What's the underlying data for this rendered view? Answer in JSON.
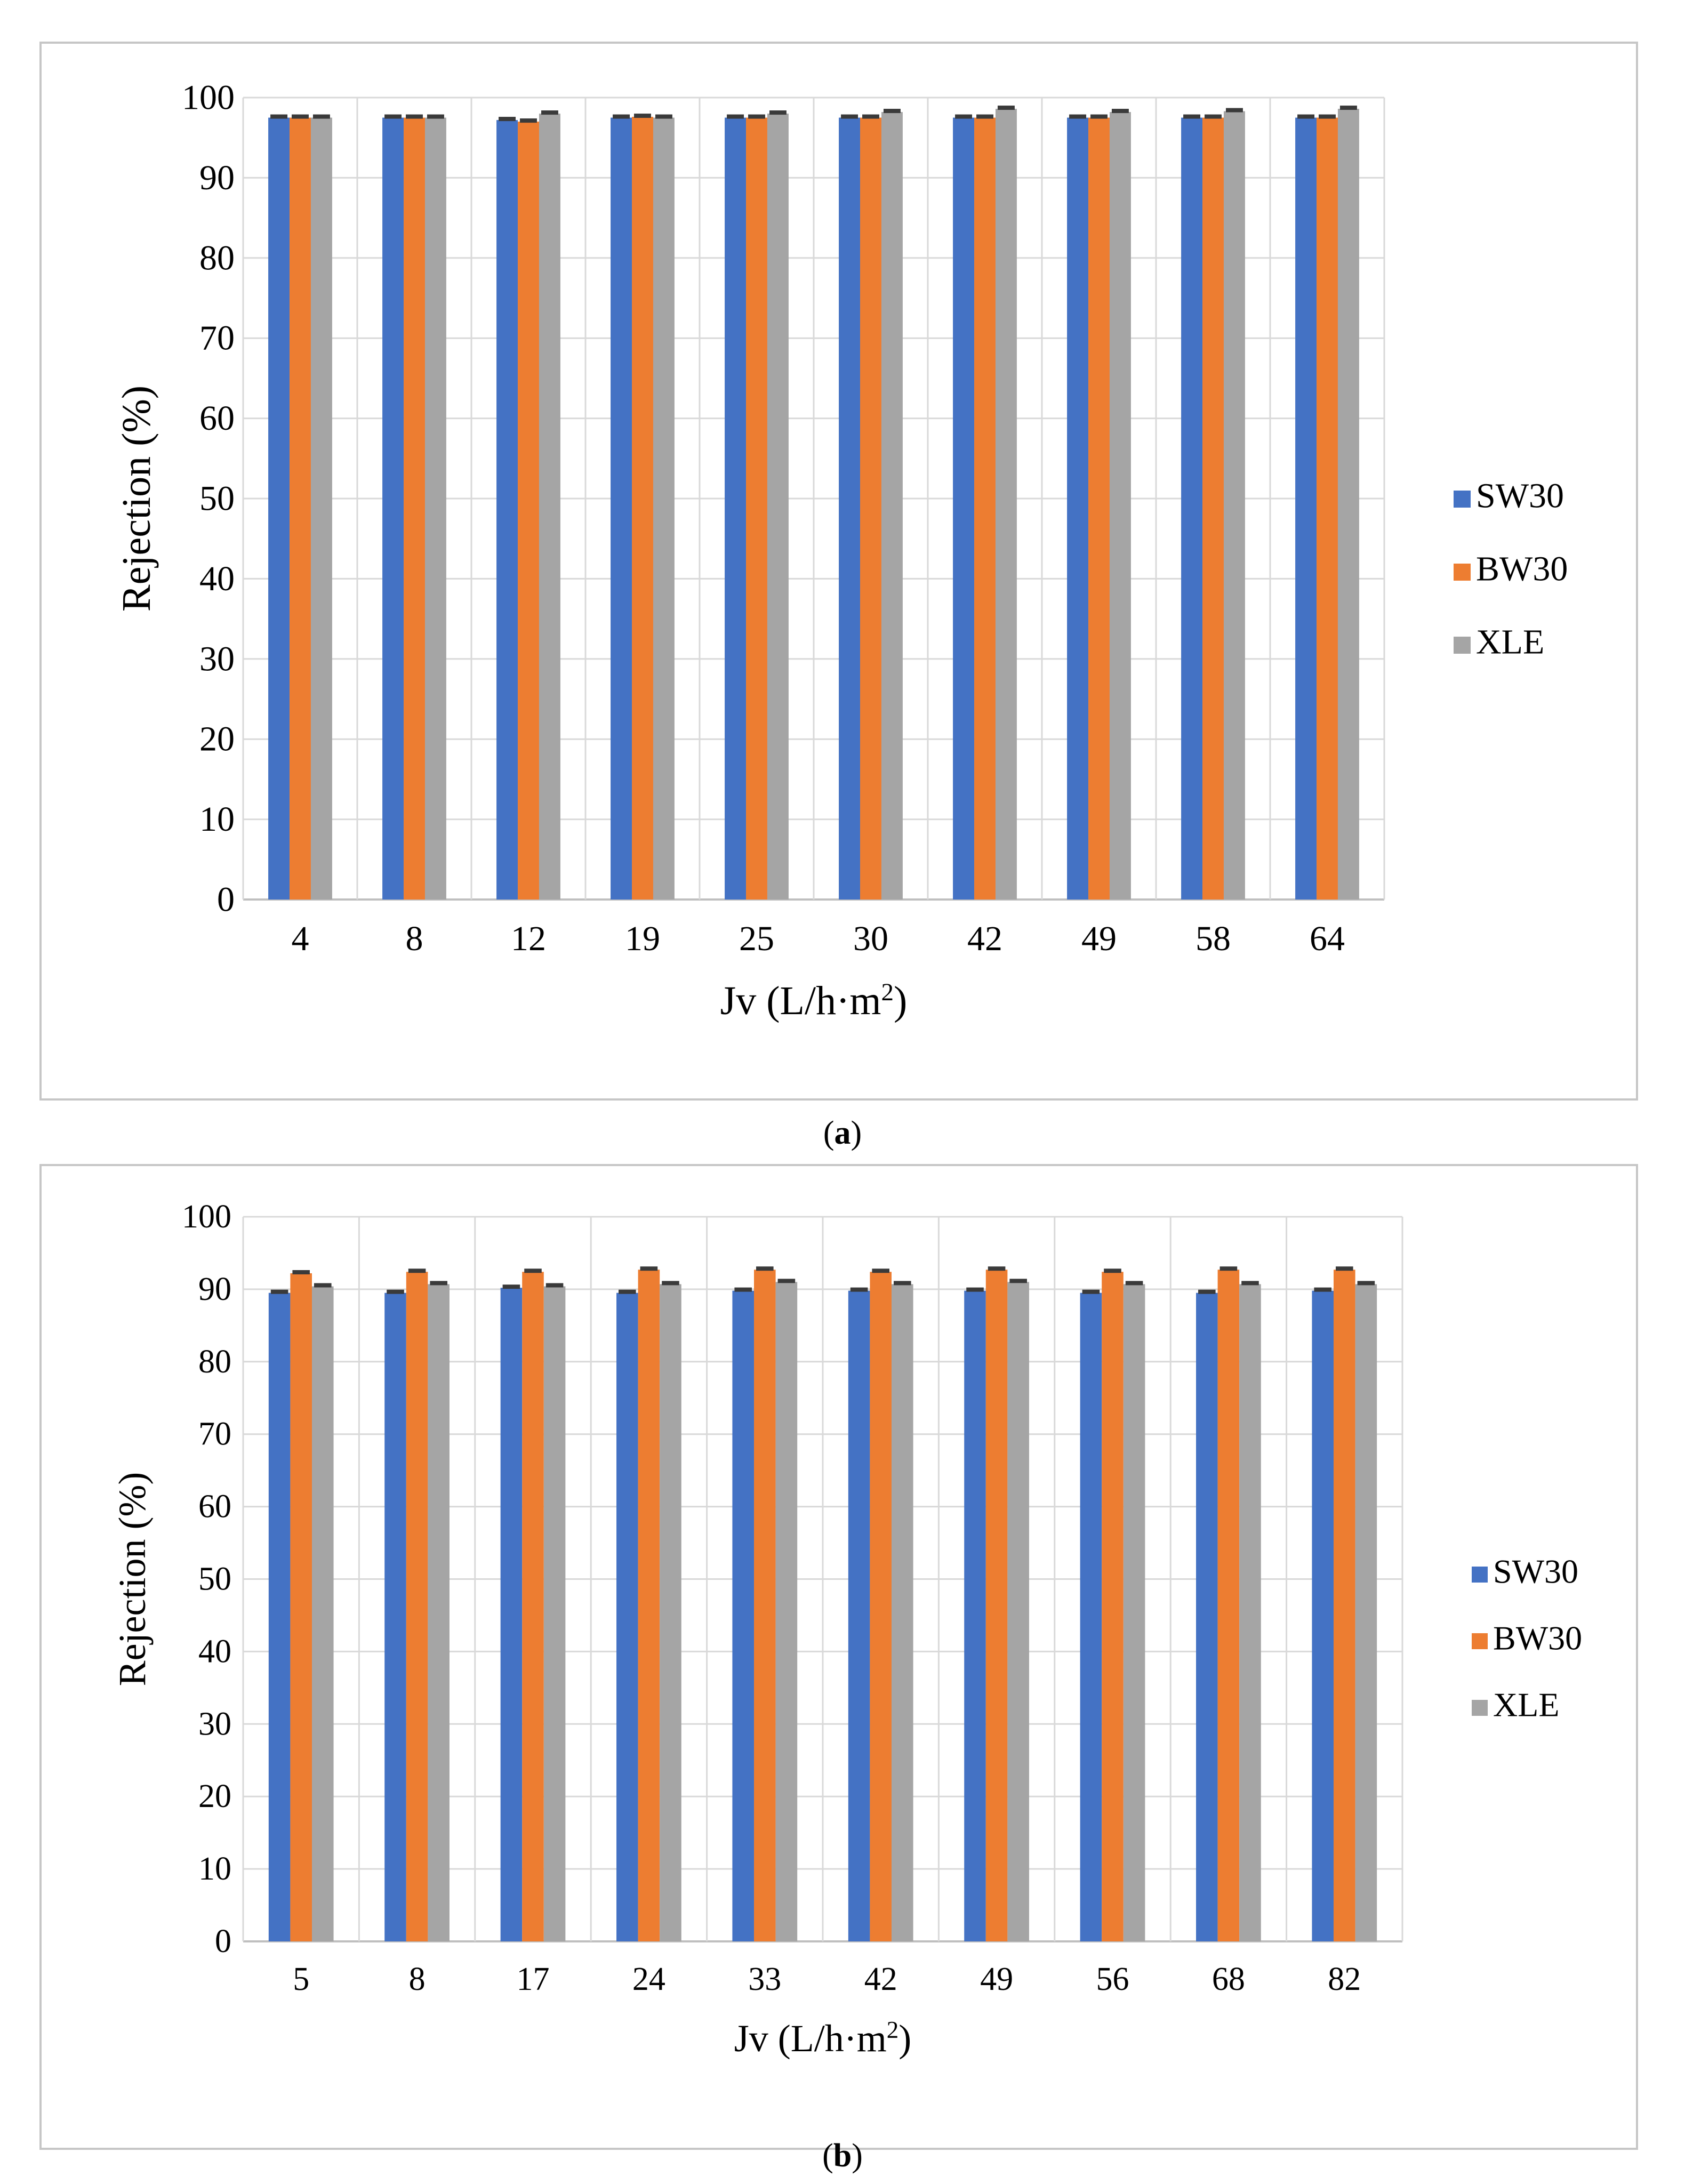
{
  "series_colors": {
    "SW30": "#4472c4",
    "BW30": "#ed7d31",
    "XLE": "#a5a5a5"
  },
  "panels": [
    {
      "caption_letter": "a"
    },
    {
      "caption_letter": "b"
    }
  ],
  "chart_data": [
    {
      "type": "bar",
      "panel": "a",
      "title": "",
      "xlabel": "Jv (L/h·m",
      "xlabel_sup": "2",
      "xlabel_end": ")",
      "ylabel": "Rejection (%)",
      "ylim": [
        0,
        100
      ],
      "yticks": [
        0,
        10,
        20,
        30,
        40,
        50,
        60,
        70,
        80,
        90,
        100
      ],
      "grid": true,
      "legend_position": "right",
      "categories": [
        "4",
        "8",
        "12",
        "19",
        "25",
        "30",
        "42",
        "49",
        "58",
        "64"
      ],
      "series": [
        {
          "name": "SW30",
          "values": [
            97.5,
            97.5,
            97.2,
            97.5,
            97.5,
            97.5,
            97.5,
            97.5,
            97.5,
            97.5
          ]
        },
        {
          "name": "BW30",
          "values": [
            97.5,
            97.5,
            97.0,
            97.6,
            97.5,
            97.5,
            97.5,
            97.5,
            97.5,
            97.5
          ]
        },
        {
          "name": "XLE",
          "values": [
            97.5,
            97.5,
            98.0,
            97.5,
            98.0,
            98.2,
            98.6,
            98.2,
            98.3,
            98.6
          ]
        }
      ]
    },
    {
      "type": "bar",
      "panel": "b",
      "title": "",
      "xlabel": "Jv (L/h·m",
      "xlabel_sup": "2",
      "xlabel_end": ")",
      "ylabel": "Rejection (%)",
      "ylim": [
        0,
        100
      ],
      "yticks": [
        0,
        10,
        20,
        30,
        40,
        50,
        60,
        70,
        80,
        90,
        100
      ],
      "grid": true,
      "legend_position": "right",
      "categories": [
        "5",
        "8",
        "17",
        "24",
        "33",
        "42",
        "49",
        "56",
        "68",
        "82"
      ],
      "series": [
        {
          "name": "SW30",
          "values": [
            89.5,
            89.5,
            90.2,
            89.5,
            89.8,
            89.8,
            89.8,
            89.5,
            89.5,
            89.8
          ]
        },
        {
          "name": "BW30",
          "values": [
            92.2,
            92.4,
            92.4,
            92.7,
            92.7,
            92.4,
            92.7,
            92.4,
            92.7,
            92.7
          ]
        },
        {
          "name": "XLE",
          "values": [
            90.4,
            90.7,
            90.4,
            90.7,
            91.0,
            90.7,
            91.0,
            90.7,
            90.7,
            90.7
          ]
        }
      ]
    }
  ]
}
